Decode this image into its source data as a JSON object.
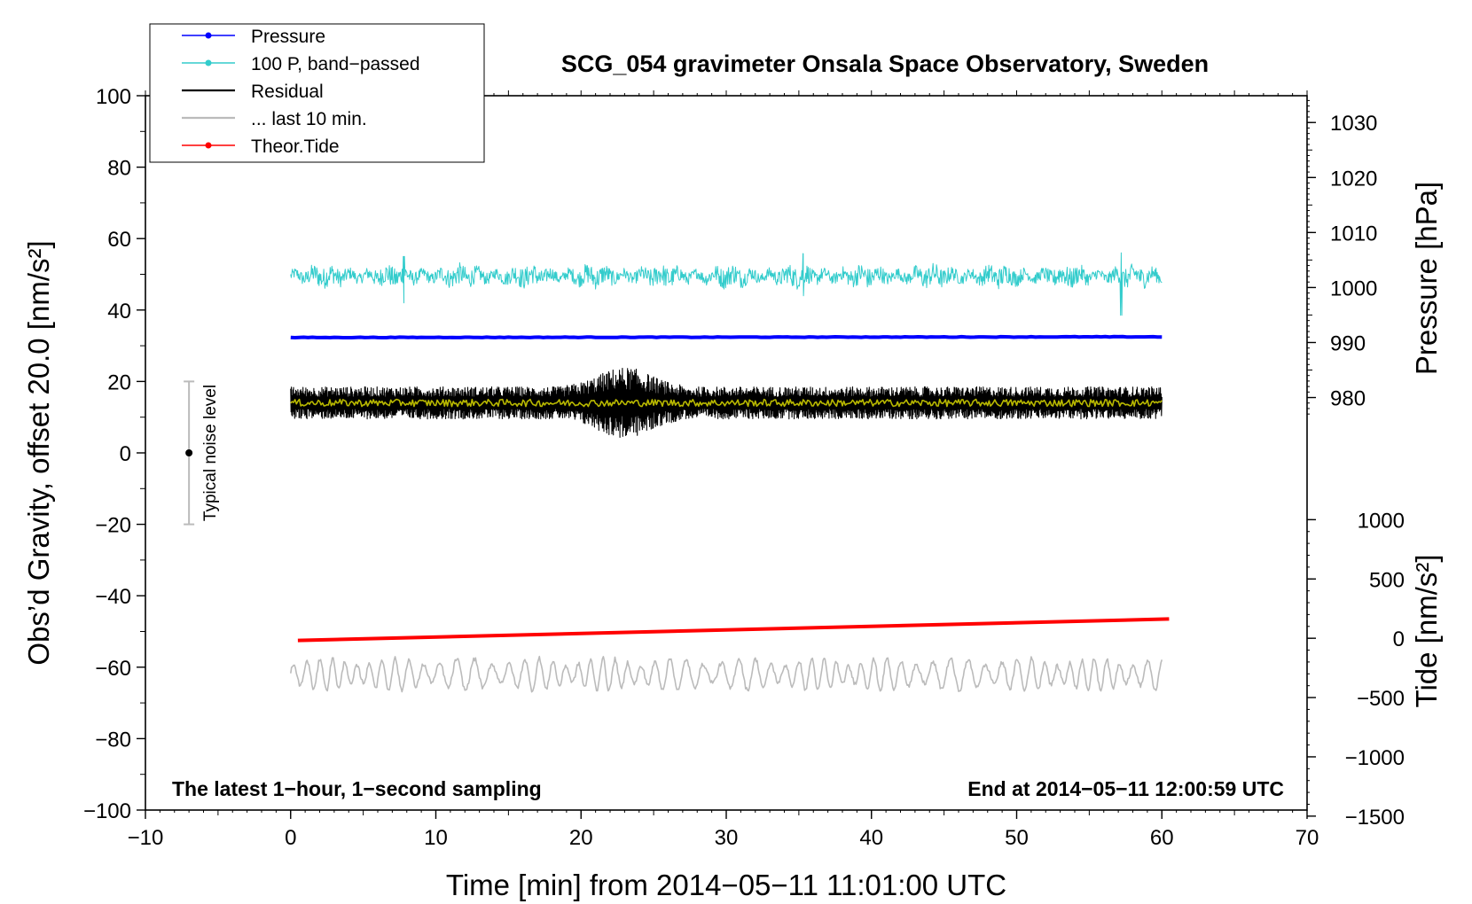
{
  "chart_data": {
    "type": "line",
    "title": "SCG_054 gravimeter Onsala Space Observatory, Sweden",
    "xlabel": "Time [min] from 2014−05−11 11:01:00 UTC",
    "ylabel_left": "Obs’d Gravity, offset 20.0 [nm/s²]",
    "ylabel_right_top": "Pressure [hPa]",
    "ylabel_right_bottom": "Tide [nm/s²]",
    "xlim": [
      -10,
      70
    ],
    "ylim_left": [
      -100,
      100
    ],
    "xticks": [
      "−10",
      "0",
      "10",
      "20",
      "30",
      "40",
      "50",
      "60",
      "70"
    ],
    "yticks_left": [
      "−100",
      "−80",
      "−60",
      "−40",
      "−20",
      "0",
      "20",
      "40",
      "60",
      "80",
      "100"
    ],
    "pressure_axis": {
      "ticks": [
        980,
        990,
        1000,
        1010,
        1020,
        1030
      ],
      "tick_labels": [
        "980",
        "990",
        "1000",
        "1010",
        "1020",
        "1030"
      ],
      "mapping": "1000 hPa at left value 46.3; 10 hPa per 15.4 left units"
    },
    "tide_axis": {
      "ticks": [
        -1500,
        -1000,
        -500,
        0,
        500,
        1000
      ],
      "tick_labels": [
        "−1500",
        "−1000",
        "−500",
        "0",
        "500",
        "1000"
      ],
      "mapping": "0 nm/s² at left value −51.9; 500 nm/s² per 16.6 left units"
    },
    "legend": [
      {
        "label": "Pressure",
        "color": "#0000ff",
        "marker": true
      },
      {
        "label": "100 P, band−passed",
        "color": "#33cccc",
        "marker": true
      },
      {
        "label": "Residual",
        "color": "#000000",
        "marker": false
      },
      {
        "label": "... last 10 min.",
        "color": "#bbbbbb",
        "marker": false
      },
      {
        "label": "Theor.Tide",
        "color": "#ff0000",
        "marker": true
      }
    ],
    "series": [
      {
        "name": "Pressure",
        "color": "#0000ff",
        "x_range": [
          0,
          60
        ],
        "left_value_start": 32.3,
        "left_value_end": 32.5,
        "hpa_approx": 991
      },
      {
        "name": "100 P, band−passed",
        "color": "#33cccc",
        "x_range": [
          0,
          60
        ],
        "mean": 49.5,
        "amplitude": 3,
        "spikes": [
          [
            7.8,
            55,
            42
          ],
          [
            35.3,
            55.8,
            44
          ],
          [
            57.2,
            56,
            38.5
          ]
        ]
      },
      {
        "name": "Residual",
        "color": "#000000",
        "x_range": [
          0,
          60
        ],
        "mean": 14,
        "amplitude": 4.5,
        "burst": {
          "x_range": [
            19,
            27
          ],
          "max": 24,
          "min": -1
        }
      },
      {
        "name": "Residual smoothed",
        "color": "#b8b800",
        "x_range": [
          0,
          60
        ],
        "mean": 14,
        "amplitude": 1
      },
      {
        "name": "... last 10 min.",
        "color": "#bbbbbb",
        "x_range": [
          0,
          60
        ],
        "mean": -62,
        "amplitude": 4.5
      },
      {
        "name": "Theor.Tide",
        "color": "#ff0000",
        "x_range": [
          0.5,
          60.5
        ],
        "left_value_start": -52.5,
        "left_value_end": -46.5,
        "tide_start": -20,
        "tide_end": 160
      }
    ],
    "noise_bar": {
      "label": "Typical noise level",
      "x": -7,
      "center": 0,
      "low": -20,
      "high": 20
    },
    "annotations": {
      "bottom_left": "The latest 1−hour, 1−second sampling",
      "bottom_right": "End at 2014−05−11 12:00:59 UTC"
    }
  }
}
